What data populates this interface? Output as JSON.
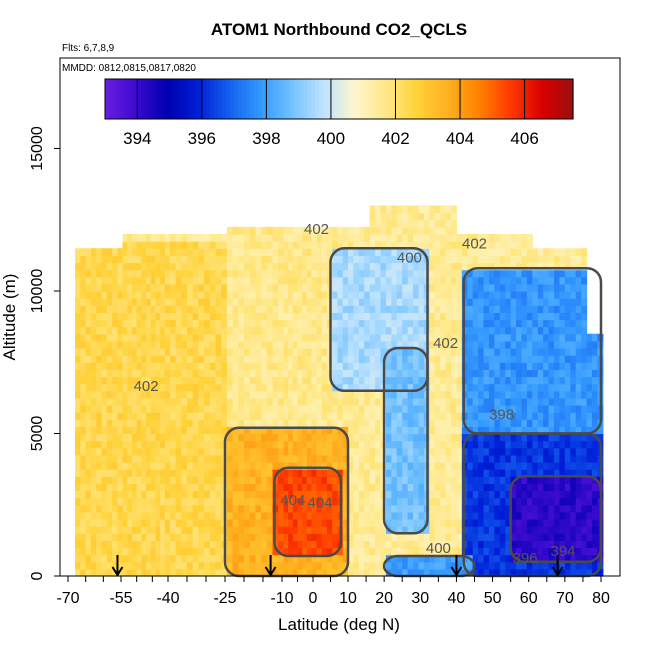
{
  "chart_data": {
    "type": "heatmap",
    "title": "ATOM1 Northbound CO2_QCLS",
    "flights_note": "Flts: 6,7,8,9",
    "dates_note": "MMDD: 0812,0815,0817,0820",
    "xlabel": "Latitude (deg N)",
    "ylabel": "Altitude (m)",
    "xlim": [
      -70,
      80
    ],
    "ylim": [
      0,
      17500
    ],
    "x_tick_labels": [
      "-70",
      "-55",
      "-40",
      "-25",
      "-10",
      "0",
      "10",
      "20",
      "30",
      "40",
      "50",
      "60",
      "70",
      "80"
    ],
    "x_tick_values": [
      -70,
      -55,
      -40,
      -25,
      -10,
      0,
      10,
      20,
      30,
      40,
      50,
      60,
      70,
      80
    ],
    "x_axis_note": "tick labels printed at -70,-55,-40,-25,-10,0,10,...,80 on a non-linear (compressed southern) latitude axis",
    "y_ticks": [
      0,
      5000,
      10000,
      15000
    ],
    "y_tick_labels": [
      "0",
      "5000",
      "10000",
      "15000"
    ],
    "colorbar": {
      "range": [
        393,
        407.5
      ],
      "tick_values": [
        394,
        396,
        398,
        400,
        402,
        404,
        406
      ],
      "tick_labels": [
        "394",
        "396",
        "398",
        "400",
        "402",
        "404",
        "406"
      ],
      "colors": [
        "#6a1ee0",
        "#3a0bd0",
        "#0000b0",
        "#0020d8",
        "#1560ef",
        "#3399ff",
        "#73c2ff",
        "#bfe3ff",
        "#fff6cc",
        "#ffe888",
        "#ffd23a",
        "#ffb020",
        "#ff8000",
        "#ff3a00",
        "#d90000",
        "#9a0f0f"
      ]
    },
    "grid": false,
    "contour_levels": [
      394,
      396,
      398,
      400,
      402,
      404
    ],
    "contour_labels": [
      {
        "text": "402",
        "lat": 1.0,
        "alt": 12000
      },
      {
        "text": "402",
        "lat": 45.0,
        "alt": 11500
      },
      {
        "text": "400",
        "lat": 27.0,
        "alt": 11000
      },
      {
        "text": "402",
        "lat": 37.0,
        "alt": 8000
      },
      {
        "text": "398",
        "lat": 52.5,
        "alt": 5500
      },
      {
        "text": "402",
        "lat": -47.0,
        "alt": 6500
      },
      {
        "text": "404",
        "lat": -6.5,
        "alt": 2500
      },
      {
        "text": "404",
        "lat": 2.0,
        "alt": 2400
      },
      {
        "text": "400",
        "lat": 35.0,
        "alt": 800
      },
      {
        "text": "396",
        "lat": 59.0,
        "alt": 450
      },
      {
        "text": "394",
        "lat": 69.5,
        "alt": 700
      }
    ],
    "flight_markers_lat": [
      -56,
      -13,
      40,
      68
    ],
    "regions": [
      {
        "lat": [
          -70,
          -25
        ],
        "alt": [
          0,
          11800
        ],
        "co2": 402.4
      },
      {
        "lat": [
          -25,
          10
        ],
        "alt": [
          0,
          5200
        ],
        "co2": 403.5
      },
      {
        "lat": [
          -12,
          8
        ],
        "alt": [
          700,
          3800
        ],
        "co2": 405.4
      },
      {
        "lat": [
          -25,
          10
        ],
        "alt": [
          5200,
          13000
        ],
        "co2": 401.6
      },
      {
        "lat": [
          5,
          32
        ],
        "alt": [
          6500,
          11500
        ],
        "co2": 399.5
      },
      {
        "lat": [
          20,
          32
        ],
        "alt": [
          1500,
          8000
        ],
        "co2": 398.8
      },
      {
        "lat": [
          32,
          42
        ],
        "alt": [
          3000,
          11000
        ],
        "co2": 401.5
      },
      {
        "lat": [
          42,
          80
        ],
        "alt": [
          5000,
          10800
        ],
        "co2": 397.8
      },
      {
        "lat": [
          42,
          80
        ],
        "alt": [
          0,
          5000
        ],
        "co2": 396.2
      },
      {
        "lat": [
          55,
          80
        ],
        "alt": [
          500,
          3500
        ],
        "co2": 394.2
      },
      {
        "lat": [
          20,
          45
        ],
        "alt": [
          0,
          700
        ],
        "co2": 398.0
      }
    ]
  }
}
